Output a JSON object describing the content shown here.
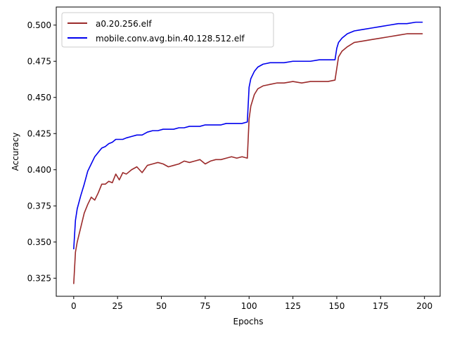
{
  "chart_data": {
    "type": "line",
    "title": "",
    "xlabel": "Epochs",
    "ylabel": "Accuracy",
    "xlim": [
      -9.95,
      208.95
    ],
    "ylim": [
      0.3125,
      0.5125
    ],
    "xticks": [
      0,
      25,
      50,
      75,
      100,
      125,
      150,
      175,
      200
    ],
    "yticks": [
      0.325,
      0.35,
      0.375,
      0.4,
      0.425,
      0.45,
      0.475,
      0.5
    ],
    "xtick_labels": [
      "0",
      "25",
      "50",
      "75",
      "100",
      "125",
      "150",
      "175",
      "200"
    ],
    "ytick_labels": [
      "0.325",
      "0.350",
      "0.375",
      "0.400",
      "0.425",
      "0.450",
      "0.475",
      "0.500"
    ],
    "grid": false,
    "legend_position": "upper-left",
    "series": [
      {
        "name": "a0.20.256.elf",
        "color": "#9b2a2a",
        "x": [
          0,
          1,
          2,
          4,
          6,
          8,
          10,
          12,
          14,
          16,
          18,
          20,
          22,
          24,
          26,
          28,
          30,
          33,
          36,
          39,
          42,
          45,
          48,
          51,
          54,
          57,
          60,
          63,
          66,
          69,
          72,
          75,
          78,
          81,
          84,
          87,
          90,
          93,
          96,
          99,
          100,
          101,
          103,
          105,
          108,
          112,
          116,
          120,
          125,
          130,
          135,
          140,
          145,
          149,
          150,
          151,
          153,
          156,
          160,
          165,
          170,
          175,
          180,
          185,
          190,
          195,
          199
        ],
        "y": [
          0.321,
          0.343,
          0.35,
          0.36,
          0.37,
          0.376,
          0.381,
          0.379,
          0.384,
          0.39,
          0.39,
          0.392,
          0.391,
          0.397,
          0.393,
          0.398,
          0.397,
          0.4,
          0.402,
          0.398,
          0.403,
          0.404,
          0.405,
          0.404,
          0.402,
          0.403,
          0.404,
          0.406,
          0.405,
          0.406,
          0.407,
          0.404,
          0.406,
          0.407,
          0.407,
          0.408,
          0.409,
          0.408,
          0.409,
          0.408,
          0.435,
          0.444,
          0.452,
          0.456,
          0.458,
          0.459,
          0.46,
          0.46,
          0.461,
          0.46,
          0.461,
          0.461,
          0.461,
          0.462,
          0.47,
          0.478,
          0.482,
          0.485,
          0.488,
          0.489,
          0.49,
          0.491,
          0.492,
          0.493,
          0.494,
          0.494,
          0.494
        ]
      },
      {
        "name": "mobile.conv.avg.bin.40.128.512.elf",
        "color": "#0000ee",
        "x": [
          0,
          1,
          2,
          4,
          6,
          8,
          10,
          12,
          14,
          16,
          18,
          20,
          22,
          24,
          26,
          28,
          30,
          33,
          36,
          39,
          42,
          45,
          48,
          51,
          54,
          57,
          60,
          63,
          66,
          69,
          72,
          75,
          78,
          81,
          84,
          87,
          90,
          93,
          96,
          99,
          100,
          101,
          103,
          105,
          108,
          112,
          116,
          120,
          125,
          130,
          135,
          140,
          145,
          149,
          150,
          151,
          153,
          156,
          160,
          165,
          170,
          175,
          180,
          185,
          190,
          195,
          199
        ],
        "y": [
          0.345,
          0.365,
          0.373,
          0.382,
          0.39,
          0.399,
          0.404,
          0.409,
          0.412,
          0.415,
          0.416,
          0.418,
          0.419,
          0.421,
          0.421,
          0.421,
          0.422,
          0.423,
          0.424,
          0.424,
          0.426,
          0.427,
          0.427,
          0.428,
          0.428,
          0.428,
          0.429,
          0.429,
          0.43,
          0.43,
          0.43,
          0.431,
          0.431,
          0.431,
          0.431,
          0.432,
          0.432,
          0.432,
          0.432,
          0.433,
          0.457,
          0.463,
          0.468,
          0.471,
          0.473,
          0.474,
          0.474,
          0.474,
          0.475,
          0.475,
          0.475,
          0.476,
          0.476,
          0.476,
          0.484,
          0.488,
          0.491,
          0.494,
          0.496,
          0.497,
          0.498,
          0.499,
          0.5,
          0.501,
          0.501,
          0.502,
          0.502
        ]
      }
    ]
  }
}
